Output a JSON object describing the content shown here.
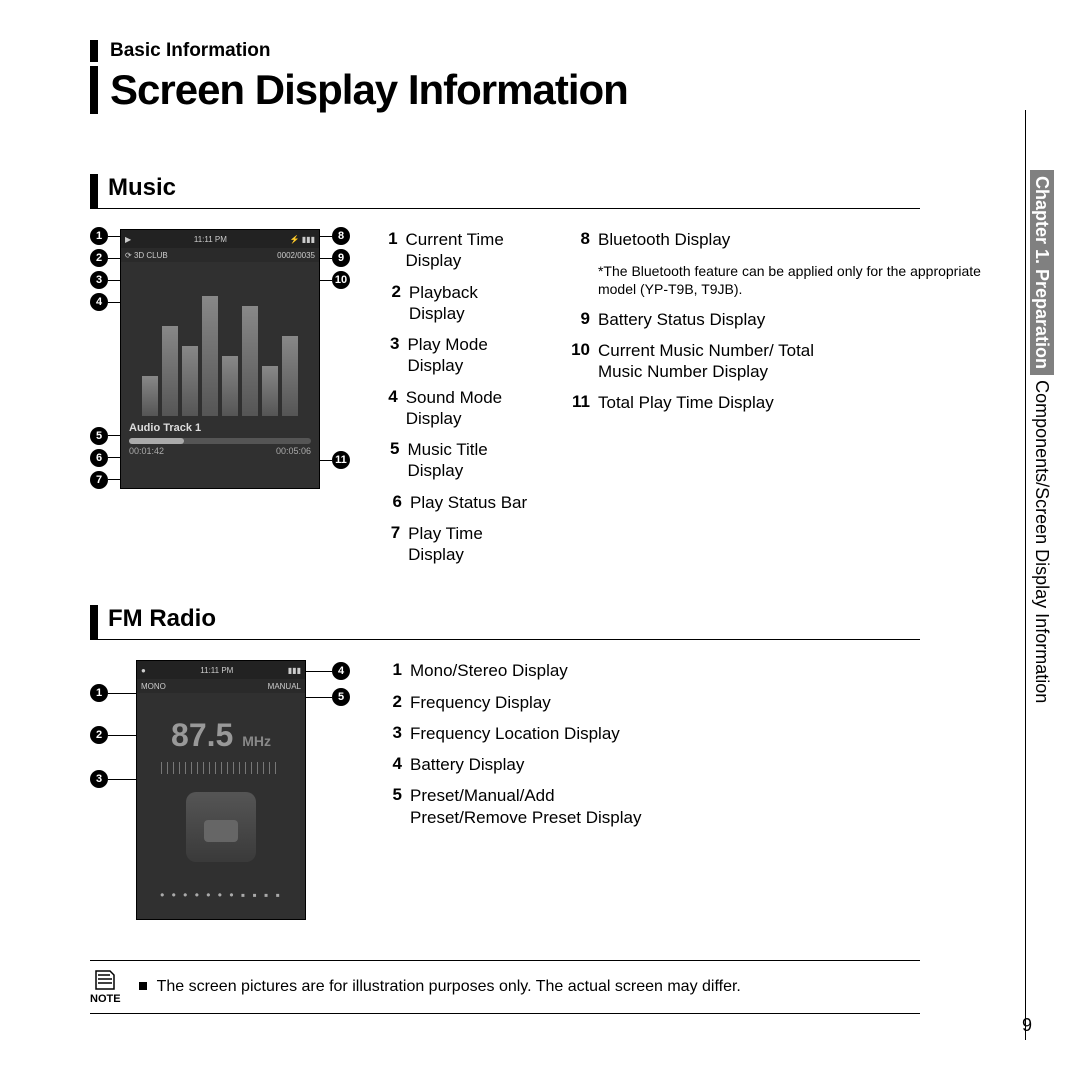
{
  "header": {
    "breadcrumb": "Basic Information",
    "title": "Screen Display Information"
  },
  "sections": {
    "music": {
      "title": "Music",
      "device": {
        "time": "11:11 PM",
        "counter": "0002/0035",
        "mode": "3D CLUB",
        "eq_bars": [
          40,
          90,
          70,
          120,
          60,
          110,
          50,
          80
        ],
        "track": "Audio Track 1",
        "elapsed": "00:01:42",
        "total": "00:05:06"
      },
      "left_callouts": [
        1,
        2,
        3,
        4,
        5,
        6,
        7
      ],
      "right_callouts": [
        8,
        9,
        10,
        11
      ],
      "legend_left": [
        {
          "n": "1",
          "t": "Current Time Display"
        },
        {
          "n": "2",
          "t": "Playback Display"
        },
        {
          "n": "3",
          "t": "Play Mode Display"
        },
        {
          "n": "4",
          "t": "Sound Mode Display"
        },
        {
          "n": "5",
          "t": "Music Title Display"
        },
        {
          "n": "6",
          "t": "Play Status Bar"
        },
        {
          "n": "7",
          "t": "Play Time Display"
        }
      ],
      "legend_right": [
        {
          "n": "8",
          "t": "Bluetooth Display",
          "sub": "*The Bluetooth feature can be applied only for the appropriate model (YP-T9B, T9JB)."
        },
        {
          "n": "9",
          "t": "Battery Status Display"
        },
        {
          "n": "10",
          "t": "Current Music Number/ Total Music Number Display"
        },
        {
          "n": "11",
          "t": "Total Play Time Display"
        }
      ]
    },
    "fm": {
      "title": "FM Radio",
      "device": {
        "time": "11:11 PM",
        "left_label": "MONO",
        "right_label": "MANUAL",
        "freq": "87.5",
        "unit": "MHz"
      },
      "left_callouts": [
        1,
        2,
        3
      ],
      "right_callouts": [
        4,
        5
      ],
      "legend": [
        {
          "n": "1",
          "t": "Mono/Stereo Display"
        },
        {
          "n": "2",
          "t": "Frequency Display"
        },
        {
          "n": "3",
          "t": "Frequency Location Display"
        },
        {
          "n": "4",
          "t": "Battery Display"
        },
        {
          "n": "5",
          "t": "Preset/Manual/Add Preset/Remove Preset Display"
        }
      ]
    }
  },
  "note": {
    "label": "NOTE",
    "text": "The screen pictures are for illustration purposes only. The actual screen may differ."
  },
  "side": {
    "chapter": "Chapter 1. Preparation",
    "trail": " Components/Screen Display Information"
  },
  "page_number": "9",
  "colors": {
    "device_bg": "#303030",
    "eq_top": "#888888",
    "eq_bottom": "#555555"
  }
}
